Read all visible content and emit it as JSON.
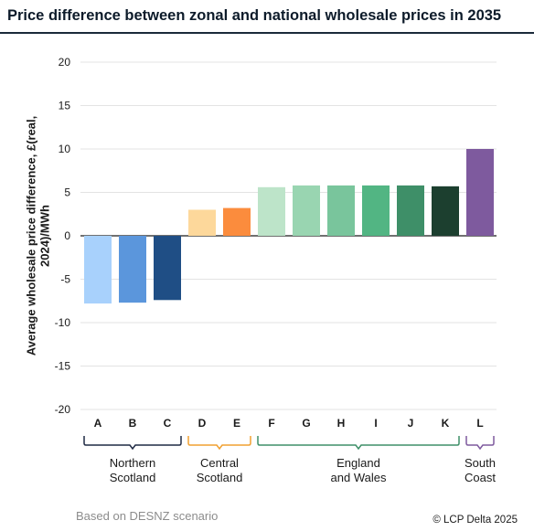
{
  "title": "Price difference between zonal and national wholesale prices in 2035",
  "footer": {
    "source_note": "Based on DESNZ scenario",
    "copyright": "© LCP Delta 2025"
  },
  "chart_data": {
    "type": "bar",
    "title": "Price difference between zonal and national wholesale prices in 2035",
    "ylabel": "Average wholesale price difference, £(real, 2024)/MWh",
    "xlabel": "",
    "ylim": [
      -20,
      20
    ],
    "yticks": [
      20,
      15,
      10,
      5,
      0,
      -5,
      -10,
      -15,
      -20
    ],
    "grid": true,
    "categories": [
      "A",
      "B",
      "C",
      "D",
      "E",
      "F",
      "G",
      "H",
      "I",
      "J",
      "K",
      "L"
    ],
    "values": [
      -7.8,
      -7.7,
      -7.4,
      3.0,
      3.2,
      5.6,
      5.8,
      5.8,
      5.8,
      5.8,
      5.7,
      10.0
    ],
    "colors": [
      "#a8d1fc",
      "#5b96dc",
      "#1f4e85",
      "#fdd89b",
      "#fb8c3d",
      "#bde4c9",
      "#99d5b1",
      "#79c59c",
      "#52b583",
      "#3e8f68",
      "#1c3f2f",
      "#7e5a9e"
    ],
    "groups": [
      {
        "label_lines": [
          "Northern",
          "Scotland"
        ],
        "from": 0,
        "to": 2,
        "color": "#1f2a44"
      },
      {
        "label_lines": [
          "Central",
          "Scotland"
        ],
        "from": 3,
        "to": 4,
        "color": "#f0a030"
      },
      {
        "label_lines": [
          "England",
          "and Wales"
        ],
        "from": 5,
        "to": 10,
        "color": "#3e8f68"
      },
      {
        "label_lines": [
          "South",
          "Coast"
        ],
        "from": 11,
        "to": 11,
        "color": "#7e5a9e"
      }
    ]
  }
}
